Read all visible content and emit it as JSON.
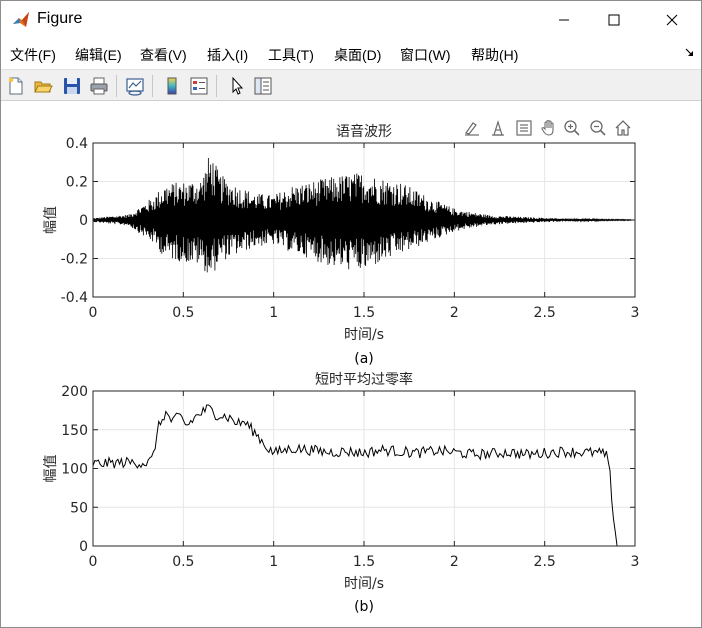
{
  "window": {
    "title": "Figure",
    "icons": {
      "app": "matlab-logo-icon",
      "minimize": "minimize-icon",
      "maximize": "maximize-icon",
      "close": "close-icon"
    }
  },
  "menu": {
    "items": [
      "文件(F)",
      "编辑(E)",
      "查看(V)",
      "插入(I)",
      "工具(T)",
      "桌面(D)",
      "窗口(W)",
      "帮助(H)"
    ],
    "collapse_icon": "arrow-down-right-icon"
  },
  "toolbar": {
    "icons": [
      "new-figure-icon",
      "open-file-icon",
      "save-icon",
      "print-icon",
      "link-plot-icon",
      "colorbar-icon",
      "legend-icon",
      "edit-plot-pointer-icon",
      "property-inspector-icon"
    ]
  },
  "axes_toolbar": {
    "icons": [
      "brush-edit-icon",
      "data-tips-icon",
      "restore-view-icon",
      "pan-hand-icon",
      "zoom-in-icon",
      "zoom-out-icon",
      "home-icon"
    ]
  },
  "chart_data": [
    {
      "type": "line",
      "title": "语音波形",
      "xlabel": "时间/s",
      "ylabel": "幅值",
      "caption": "(a)",
      "xlim": [
        0,
        3
      ],
      "ylim": [
        -0.4,
        0.4
      ],
      "xticks": [
        "0",
        "0.5",
        "1",
        "1.5",
        "2",
        "2.5",
        "3"
      ],
      "yticks": [
        "-0.4",
        "-0.2",
        "0",
        "0.2",
        "0.4"
      ],
      "grid": true,
      "color": "#000000",
      "envelope": {
        "x": [
          0,
          0.2,
          0.33,
          0.4,
          0.5,
          0.6,
          0.65,
          0.7,
          0.8,
          0.9,
          1.0,
          1.1,
          1.2,
          1.3,
          1.4,
          1.5,
          1.6,
          1.7,
          1.8,
          1.9,
          2.0,
          2.1,
          2.2,
          2.4,
          2.6,
          2.8,
          2.98
        ],
        "upper": [
          0.01,
          0.03,
          0.12,
          0.19,
          0.2,
          0.22,
          0.36,
          0.24,
          0.18,
          0.14,
          0.13,
          0.18,
          0.2,
          0.22,
          0.24,
          0.25,
          0.22,
          0.2,
          0.15,
          0.1,
          0.06,
          0.04,
          0.025,
          0.015,
          0.008,
          0.004,
          0.002
        ],
        "lower": [
          -0.01,
          -0.03,
          -0.12,
          -0.2,
          -0.22,
          -0.24,
          -0.31,
          -0.22,
          -0.18,
          -0.14,
          -0.13,
          -0.17,
          -0.2,
          -0.24,
          -0.26,
          -0.27,
          -0.22,
          -0.18,
          -0.14,
          -0.1,
          -0.06,
          -0.04,
          -0.025,
          -0.015,
          -0.008,
          -0.004,
          -0.002
        ]
      }
    },
    {
      "type": "line",
      "title": "短时平均过零率",
      "xlabel": "时间/s",
      "ylabel": "幅值",
      "caption": "(b)",
      "xlim": [
        0,
        3
      ],
      "ylim": [
        0,
        200
      ],
      "xticks": [
        "0",
        "0.5",
        "1",
        "1.5",
        "2",
        "2.5",
        "3"
      ],
      "yticks": [
        "0",
        "50",
        "100",
        "150",
        "200"
      ],
      "grid": true,
      "color": "#000000",
      "x": [
        0,
        0.1,
        0.2,
        0.3,
        0.33,
        0.36,
        0.4,
        0.44,
        0.48,
        0.52,
        0.56,
        0.6,
        0.64,
        0.68,
        0.72,
        0.76,
        0.8,
        0.84,
        0.88,
        0.92,
        0.96,
        1.0,
        1.1,
        1.2,
        1.3,
        1.4,
        1.5,
        1.6,
        1.7,
        1.8,
        1.9,
        2.0,
        2.1,
        2.2,
        2.3,
        2.4,
        2.5,
        2.6,
        2.7,
        2.8,
        2.84,
        2.86,
        2.88,
        2.9,
        2.95
      ],
      "y": [
        106,
        107,
        108,
        107,
        112,
        152,
        172,
        160,
        168,
        155,
        165,
        172,
        178,
        170,
        168,
        165,
        158,
        160,
        150,
        140,
        128,
        120,
        126,
        124,
        121,
        122,
        120,
        124,
        122,
        120,
        123,
        121,
        118,
        119,
        121,
        118,
        120,
        122,
        121,
        120,
        118,
        95,
        40,
        0,
        0
      ]
    }
  ]
}
